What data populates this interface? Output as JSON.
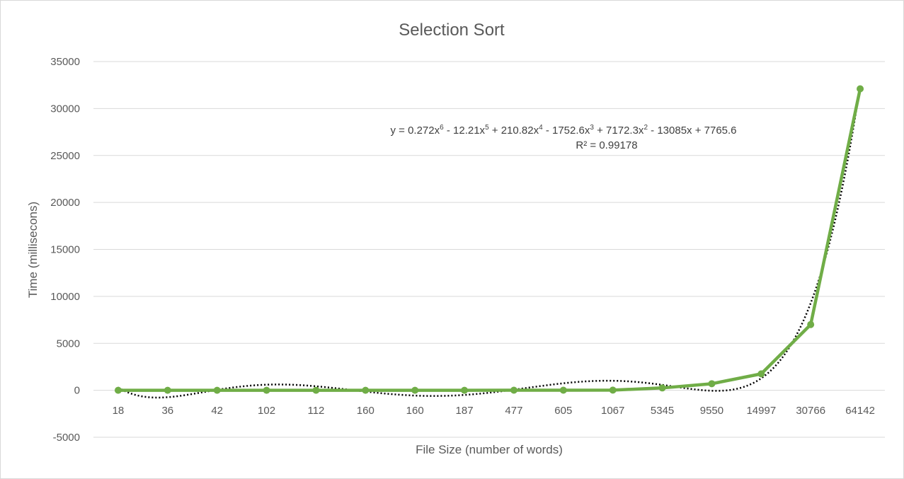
{
  "chart_data": {
    "type": "line",
    "title": "Selection Sort",
    "xlabel": "File Size (number of words)",
    "ylabel": "Time (millisecons)",
    "categories": [
      "18",
      "36",
      "42",
      "102",
      "112",
      "160",
      "160",
      "187",
      "477",
      "605",
      "1067",
      "5345",
      "9550",
      "14997",
      "30766",
      "64142"
    ],
    "series": [
      {
        "values": [
          0,
          0,
          0,
          0,
          0,
          0,
          0,
          0,
          10,
          10,
          20,
          250,
          700,
          1750,
          7000,
          32100
        ],
        "color": "#70ad47",
        "marker": "circle"
      }
    ],
    "trendline": {
      "type": "polynomial",
      "order": 6,
      "coefficients": [
        0.272,
        -12.21,
        210.82,
        -1752.6,
        7172.3,
        -13085,
        7765.6
      ],
      "color": "#000000",
      "style": "dotted",
      "equation_parts": {
        "prefix": "y = 0.272x",
        "e6": "6",
        "t5": " - 12.21x",
        "e5": "5",
        "t4": " + 210.82x",
        "e4": "4",
        "t3": " - 1752.6x",
        "e3": "3",
        "t2": " + 7172.3x",
        "e2": "2",
        "t1": " - 13085x + 7765.6"
      },
      "r_squared": "R² = 0.99178"
    },
    "y_ticks": [
      "35000",
      "30000",
      "25000",
      "20000",
      "15000",
      "10000",
      "5000",
      "0",
      "-5000"
    ],
    "ylim": [
      -5000,
      35000
    ],
    "grid": true,
    "legend": "none"
  }
}
